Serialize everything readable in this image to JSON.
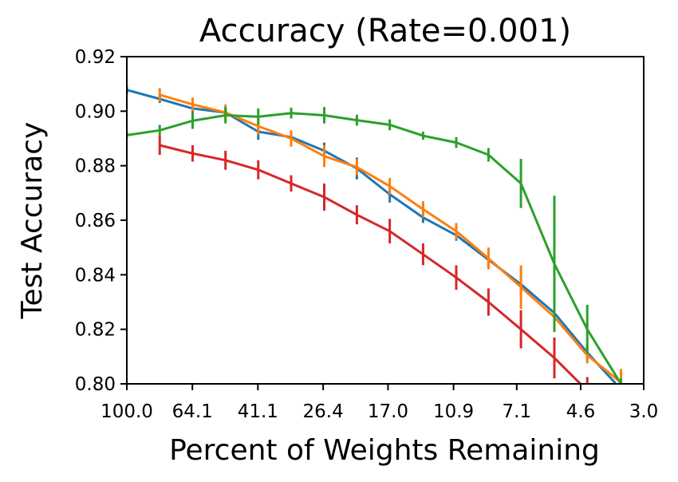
{
  "chart_data": {
    "type": "line",
    "title": "Accuracy (Rate=0.001)",
    "xlabel": "Percent of Weights Remaining",
    "ylabel": "Test Accuracy",
    "x_scale": "log",
    "x_ticks": [
      "100.0",
      "64.1",
      "41.1",
      "26.4",
      "17.0",
      "10.9",
      "7.1",
      "4.6",
      "3.0"
    ],
    "ylim": [
      0.8,
      0.92
    ],
    "y_ticks": [
      "0.80",
      "0.82",
      "0.84",
      "0.86",
      "0.88",
      "0.90",
      "0.92"
    ],
    "grid": false,
    "legend": "none",
    "error_bars": true,
    "series": [
      {
        "color": "#1f77b4",
        "x": [
          100.0,
          80.0,
          64.0,
          51.2,
          41.0,
          32.8,
          26.2,
          21.0,
          16.8,
          13.4,
          10.7,
          8.6,
          6.9,
          5.5,
          4.4,
          3.5
        ],
        "y": [
          0.9078,
          0.9045,
          0.901,
          0.8995,
          0.8925,
          0.8905,
          0.8855,
          0.879,
          0.8695,
          0.861,
          0.8545,
          0.8455,
          0.8365,
          0.826,
          0.8115,
          0.798
        ],
        "err": [
          0.0015,
          0.0015,
          0.0015,
          0.0018,
          0.003,
          0.002,
          0.003,
          0.004,
          0.003,
          0.002,
          0.002,
          0.0025,
          0.003,
          0.003,
          0.003,
          0.002
        ]
      },
      {
        "color": "#ff7f0e",
        "x": [
          80.0,
          64.0,
          51.2,
          41.0,
          32.8,
          26.2,
          21.0,
          16.8,
          13.4,
          10.7,
          8.6,
          6.9,
          5.5,
          4.4,
          3.5
        ],
        "y": [
          0.906,
          0.9025,
          0.8995,
          0.8945,
          0.89,
          0.8835,
          0.8795,
          0.8725,
          0.864,
          0.856,
          0.846,
          0.8355,
          0.8245,
          0.8105,
          0.8005
        ],
        "err": [
          0.0025,
          0.0025,
          0.003,
          0.003,
          0.003,
          0.004,
          0.003,
          0.003,
          0.003,
          0.003,
          0.004,
          0.008,
          0.004,
          0.003,
          0.005
        ]
      },
      {
        "color": "#2ca02c",
        "x": [
          100.0,
          80.0,
          64.0,
          51.2,
          41.0,
          32.8,
          26.2,
          21.0,
          16.8,
          13.4,
          10.7,
          8.6,
          6.9,
          5.5,
          4.4,
          3.5
        ],
        "y": [
          0.8912,
          0.893,
          0.8965,
          0.8985,
          0.898,
          0.8993,
          0.8985,
          0.8967,
          0.895,
          0.891,
          0.8885,
          0.884,
          0.8735,
          0.844,
          0.82,
          0.8
        ],
        "err": [
          0.001,
          0.002,
          0.003,
          0.003,
          0.003,
          0.002,
          0.003,
          0.002,
          0.002,
          0.0015,
          0.002,
          0.0025,
          0.009,
          0.025,
          0.009,
          0.002
        ]
      },
      {
        "color": "#d62728",
        "x": [
          80.0,
          64.0,
          51.2,
          41.0,
          32.8,
          26.2,
          21.0,
          16.8,
          13.4,
          10.7,
          8.6,
          6.9,
          5.5,
          4.4
        ],
        "y": [
          0.8875,
          0.8845,
          0.882,
          0.8785,
          0.8735,
          0.8685,
          0.862,
          0.856,
          0.8475,
          0.839,
          0.83,
          0.82,
          0.8095,
          0.7975
        ],
        "err": [
          0.0035,
          0.003,
          0.0035,
          0.0035,
          0.003,
          0.005,
          0.0035,
          0.0045,
          0.004,
          0.0045,
          0.005,
          0.007,
          0.0075,
          0.005
        ]
      }
    ]
  }
}
